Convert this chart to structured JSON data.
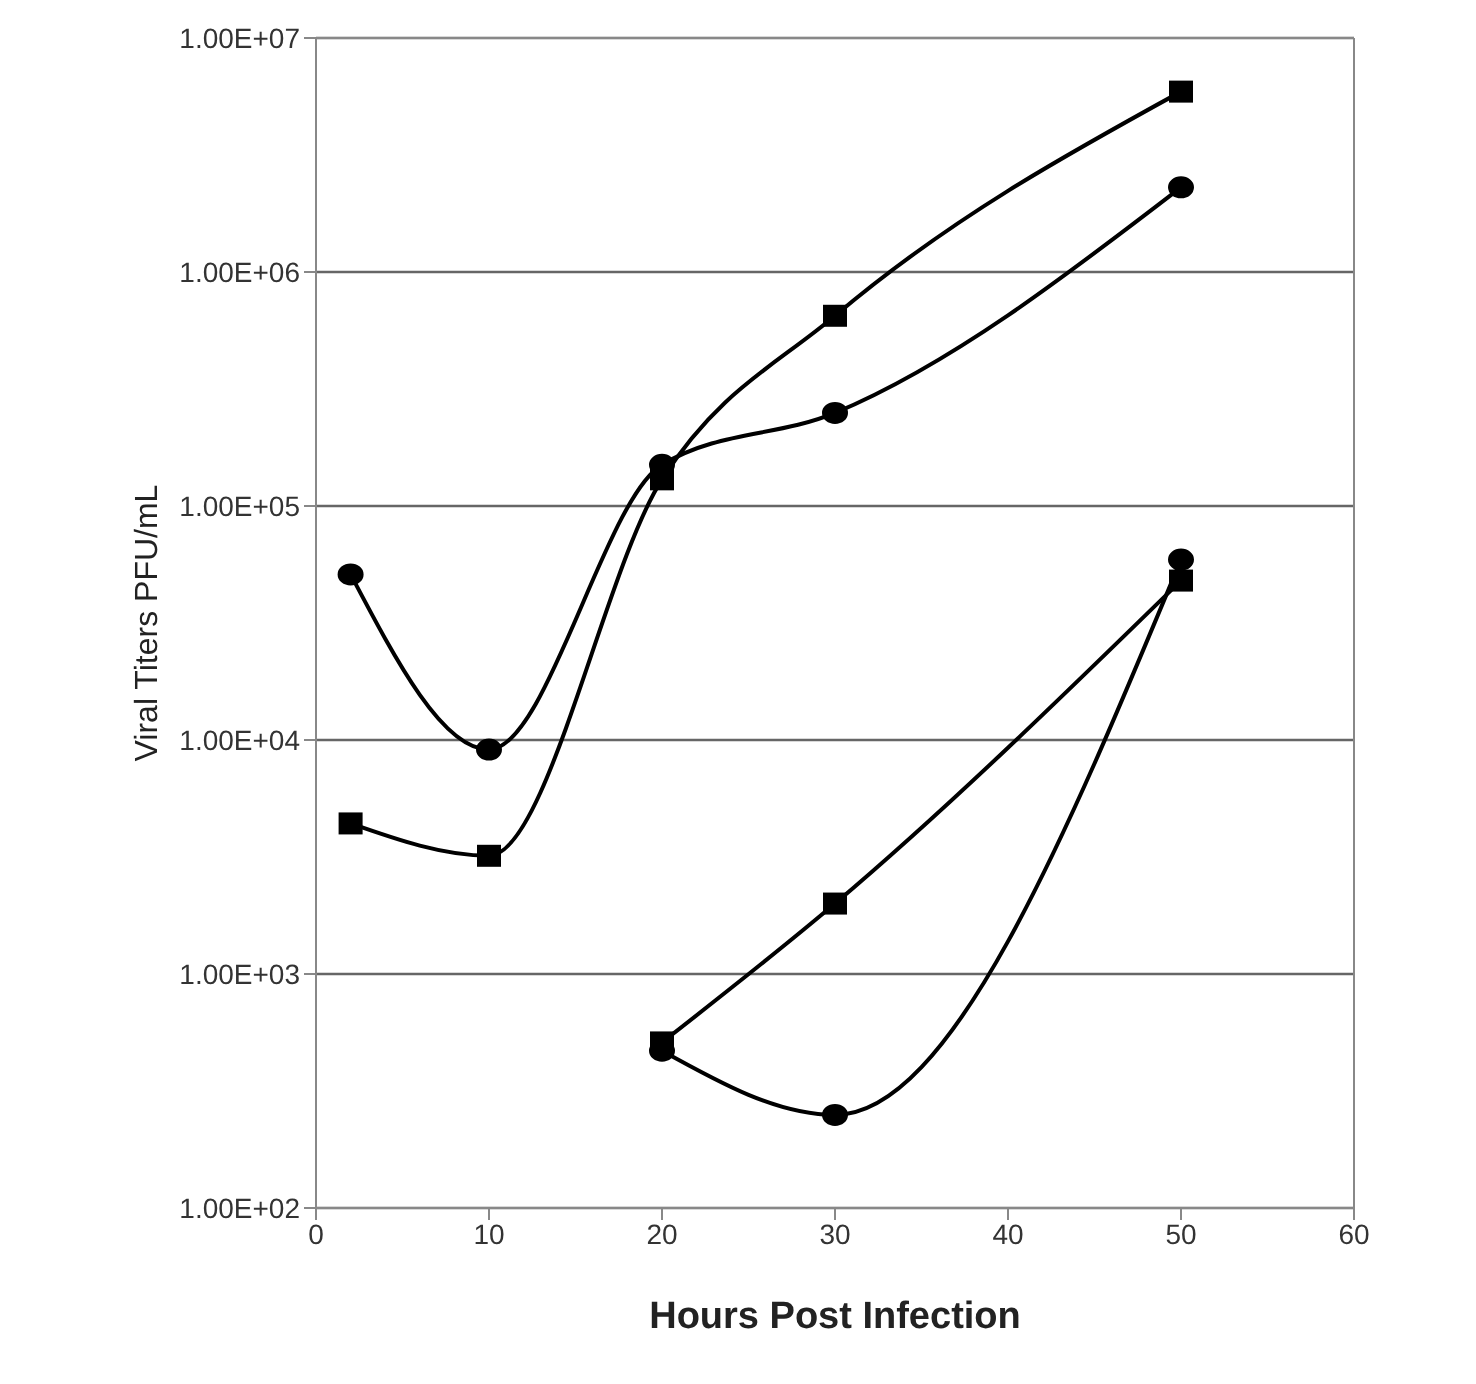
{
  "chart_data": {
    "type": "line",
    "xlabel": "Hours Post Infection",
    "ylabel": "Viral Titers PFU/mL",
    "xlim": [
      0,
      60
    ],
    "xticks": [
      0,
      10,
      20,
      30,
      40,
      50,
      60
    ],
    "log": "y",
    "ylim": [
      100,
      10000000
    ],
    "yticks": [
      {
        "value": 100,
        "label": "1.00E+02"
      },
      {
        "value": 1000,
        "label": "1.00E+03"
      },
      {
        "value": 10000,
        "label": "1.00E+04"
      },
      {
        "value": 100000,
        "label": "1.00E+05"
      },
      {
        "value": 1000000,
        "label": "1.00E+06"
      },
      {
        "value": 10000000,
        "label": "1.00E+07"
      }
    ],
    "grid": "y",
    "legend": false,
    "series": [
      {
        "color": "#000000",
        "marker": "square",
        "x": [
          2,
          10,
          20,
          30,
          50
        ],
        "values": [
          4400,
          3200,
          130000,
          650000,
          5900000
        ]
      },
      {
        "color": "#000000",
        "marker": "circle",
        "x": [
          2,
          10,
          20,
          30,
          50
        ],
        "values": [
          51000,
          9100,
          150000,
          250000,
          2300000
        ]
      },
      {
        "color": "#000000",
        "marker": "square",
        "x": [
          20,
          30,
          50
        ],
        "values": [
          510,
          2000,
          48000
        ]
      },
      {
        "color": "#000000",
        "marker": "circle",
        "x": [
          20,
          30,
          50
        ],
        "values": [
          470,
          250,
          59000
        ]
      }
    ]
  }
}
